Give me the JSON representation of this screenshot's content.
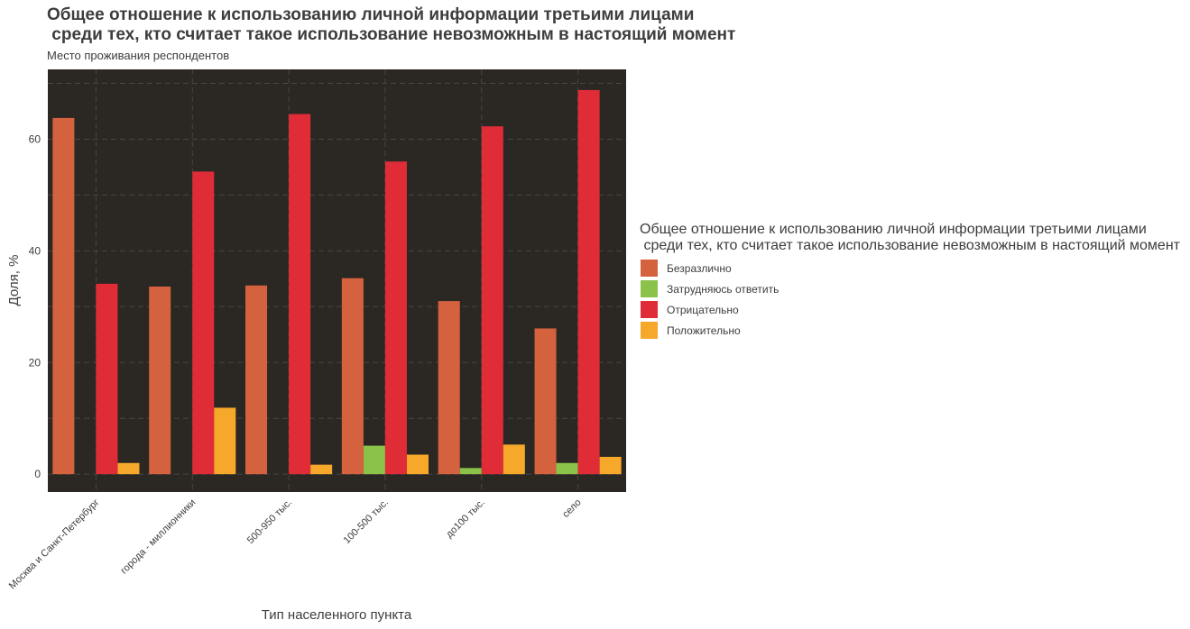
{
  "chart_data": {
    "type": "bar",
    "title": "Общее отношение к использованию личной информации третьими лицами\n среди тех, кто считает такое использование невозможным в настоящий момент",
    "subtitle": "Место проживания респондентов",
    "xlabel": "Тип населенного пункта",
    "ylabel": "Доля, %",
    "ylim": [
      -3.2,
      72.5
    ],
    "yticks": [
      0,
      20,
      40,
      60
    ],
    "grid": true,
    "legend_position": "right",
    "legend_title": "Общее отношение к использованию личной информации третьими лицами\n среди тех, кто считает такое использование невозможным в настоящий момент",
    "categories": [
      "Москва и Санкт-Петербург",
      "города - миллионники",
      "500-950 тыс.",
      "100-500 тыс.",
      "до100 тыс.",
      "село"
    ],
    "series": [
      {
        "name": "Безразлично",
        "color": "#d5623e",
        "values": [
          63.8,
          33.6,
          33.8,
          35.1,
          31.0,
          26.1
        ]
      },
      {
        "name": "Затрудняюсь ответить",
        "color": "#8bc34a",
        "values": [
          0,
          0,
          0,
          5.1,
          1.1,
          2.0
        ]
      },
      {
        "name": "Отрицательно",
        "color": "#e02c37",
        "values": [
          34.1,
          54.2,
          64.5,
          56.0,
          62.3,
          68.8
        ]
      },
      {
        "name": "Положительно",
        "color": "#f5a82a",
        "values": [
          2.0,
          11.9,
          1.7,
          3.5,
          5.3,
          3.1
        ]
      }
    ]
  }
}
